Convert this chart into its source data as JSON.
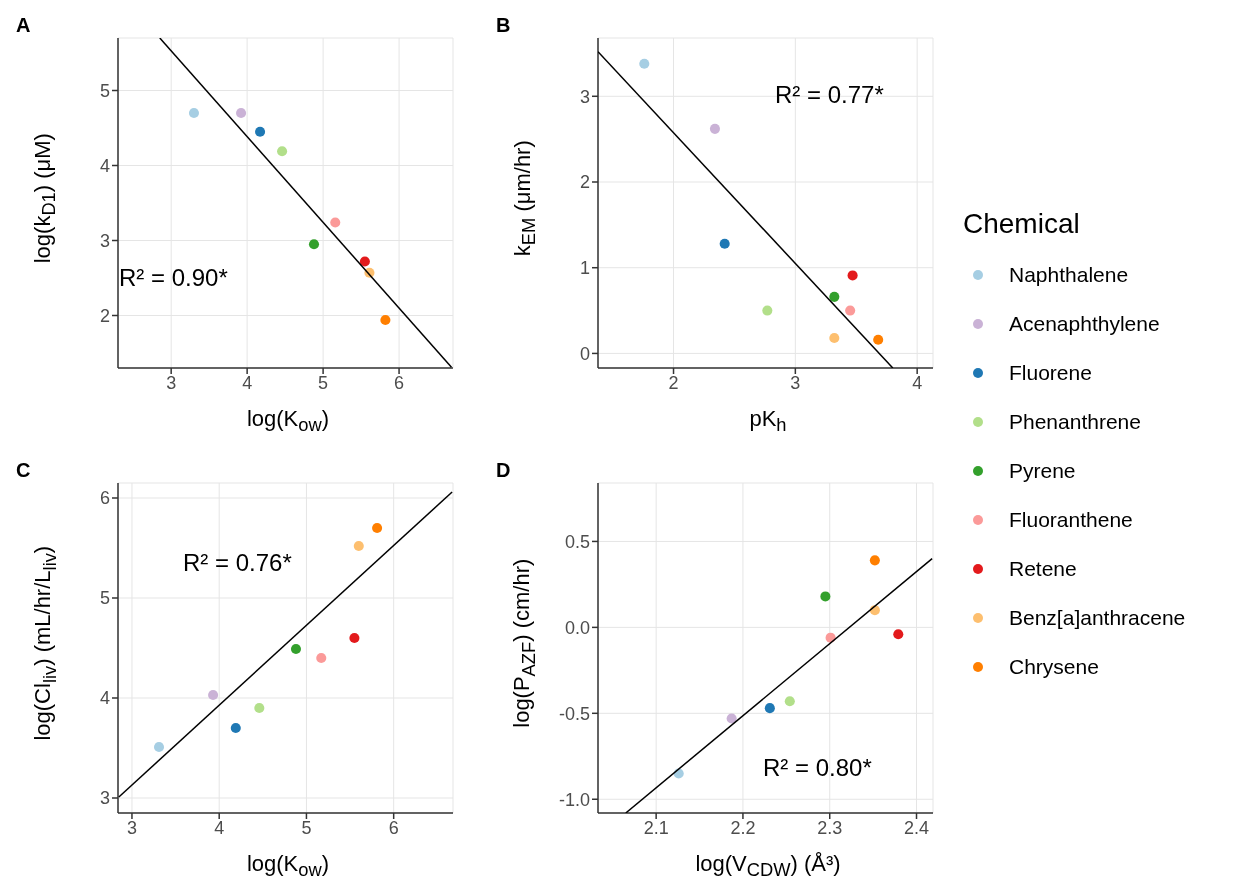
{
  "chart_data": [
    {
      "type": "scatter",
      "title": "A",
      "xlabel": "log(K$_{ow}$)",
      "ylabel": "log(k$_{D1}$) (μM)",
      "xlim": [
        2.3,
        6.71
      ],
      "ylim": [
        1.3,
        5.7
      ],
      "xticks": [
        3,
        4,
        5,
        6
      ],
      "yticks": [
        2,
        3,
        4,
        5
      ],
      "grid": true,
      "marker": "circle",
      "legend": "right",
      "legend_title": "Chemical",
      "annotations": [
        "R² = 0.90*"
      ],
      "series": [
        {
          "name": "Naphthalene",
          "color": "#a6cee3",
          "x": [
            3.3
          ],
          "values": [
            4.7
          ]
        },
        {
          "name": "Acenaphthylene",
          "color": "#cab2d6",
          "x": [
            3.92
          ],
          "values": [
            4.7
          ]
        },
        {
          "name": "Fluorene",
          "color": "#1f78b4",
          "x": [
            4.17
          ],
          "values": [
            4.45
          ]
        },
        {
          "name": "Phenanthrene",
          "color": "#b2df8a",
          "x": [
            4.46
          ],
          "values": [
            4.19
          ]
        },
        {
          "name": "Pyrene",
          "color": "#33a02c",
          "x": [
            4.88
          ],
          "values": [
            2.95
          ]
        },
        {
          "name": "Fluoranthene",
          "color": "#fb9a99",
          "x": [
            5.16
          ],
          "values": [
            3.24
          ]
        },
        {
          "name": "Retene",
          "color": "#e31a1c",
          "x": [
            5.55
          ],
          "values": [
            2.72
          ]
        },
        {
          "name": "Benz[a]anthracene",
          "color": "#fdbf6f",
          "x": [
            5.61
          ],
          "values": [
            2.57
          ]
        },
        {
          "name": "Chrysene",
          "color": "#ff7f00",
          "x": [
            5.82
          ],
          "values": [
            1.94
          ]
        },
        {
          "type": "line",
          "color": "#000000",
          "marker": "none",
          "x": [
            2.85,
            6.69
          ],
          "values": [
            5.7,
            1.31
          ]
        }
      ]
    },
    {
      "type": "scatter",
      "title": "B",
      "xlabel": "pK$_{h}$",
      "ylabel": "k$_{EM}$ (μm/hr)",
      "xlim": [
        1.38,
        4.13
      ],
      "ylim": [
        -0.17,
        3.68
      ],
      "xticks": [
        2,
        3,
        4
      ],
      "yticks": [
        0,
        1,
        2,
        3
      ],
      "grid": true,
      "marker": "circle",
      "annotations": [
        "R² = 0.77*"
      ],
      "series": [
        {
          "color": "#a6cee3",
          "x": [
            1.76
          ],
          "values": [
            3.38
          ]
        },
        {
          "color": "#cab2d6",
          "x": [
            2.34
          ],
          "values": [
            2.62
          ]
        },
        {
          "color": "#1f78b4",
          "x": [
            2.42
          ],
          "values": [
            1.28
          ]
        },
        {
          "color": "#b2df8a",
          "x": [
            2.77
          ],
          "values": [
            0.5
          ]
        },
        {
          "color": "#33a02c",
          "x": [
            3.32
          ],
          "values": [
            0.66
          ]
        },
        {
          "color": "#fb9a99",
          "x": [
            3.45
          ],
          "values": [
            0.5
          ]
        },
        {
          "color": "#e31a1c",
          "x": [
            3.47
          ],
          "values": [
            0.91
          ]
        },
        {
          "color": "#fdbf6f",
          "x": [
            3.32
          ],
          "values": [
            0.18
          ]
        },
        {
          "color": "#ff7f00",
          "x": [
            3.68
          ],
          "values": [
            0.16
          ]
        },
        {
          "type": "line",
          "color": "#000000",
          "marker": "none",
          "x": [
            1.38,
            3.8
          ],
          "values": [
            3.52,
            -0.17
          ]
        }
      ]
    },
    {
      "type": "scatter",
      "title": "C",
      "xlabel": "log(K$_{ow}$)",
      "ylabel": "log(Cl$_{liv}$) (mL/hr/L$_{liv}$)",
      "xlim": [
        2.84,
        6.68
      ],
      "ylim": [
        2.85,
        6.15
      ],
      "xticks": [
        3,
        4,
        5,
        6
      ],
      "yticks": [
        3,
        4,
        5,
        6
      ],
      "grid": true,
      "marker": "circle",
      "annotations": [
        "R² = 0.76*"
      ],
      "series": [
        {
          "color": "#a6cee3",
          "x": [
            3.31
          ],
          "values": [
            3.51
          ]
        },
        {
          "color": "#cab2d6",
          "x": [
            3.93
          ],
          "values": [
            4.03
          ]
        },
        {
          "color": "#1f78b4",
          "x": [
            4.19
          ],
          "values": [
            3.7
          ]
        },
        {
          "color": "#b2df8a",
          "x": [
            4.46
          ],
          "values": [
            3.9
          ]
        },
        {
          "color": "#33a02c",
          "x": [
            4.88
          ],
          "values": [
            4.49
          ]
        },
        {
          "color": "#fb9a99",
          "x": [
            5.17
          ],
          "values": [
            4.4
          ]
        },
        {
          "color": "#e31a1c",
          "x": [
            5.55
          ],
          "values": [
            4.6
          ]
        },
        {
          "color": "#fdbf6f",
          "x": [
            5.6
          ],
          "values": [
            5.52
          ]
        },
        {
          "color": "#ff7f00",
          "x": [
            5.81
          ],
          "values": [
            5.7
          ]
        },
        {
          "type": "line",
          "color": "#000000",
          "marker": "none",
          "x": [
            2.85,
            6.67
          ],
          "values": [
            3.01,
            6.06
          ]
        }
      ]
    },
    {
      "type": "scatter",
      "title": "D",
      "xlabel": "log(V$_{CDW}$) (Å³)",
      "ylabel": "log(P$_{AZF}$) (cm/hr)",
      "xlim": [
        2.033,
        2.419
      ],
      "ylim": [
        -1.08,
        0.84
      ],
      "xticks": [
        2.1,
        2.2,
        2.3,
        2.4
      ],
      "yticks": [
        {
          "value": -1,
          "label": "-1.0"
        },
        -0.5,
        {
          "value": 0,
          "label": "0.0"
        },
        0.5
      ],
      "grid": true,
      "marker": "circle",
      "annotations": [
        "R² = 0.80*"
      ],
      "series": [
        {
          "color": "#a6cee3",
          "x": [
            2.126
          ],
          "values": [
            -0.85
          ]
        },
        {
          "color": "#cab2d6",
          "x": [
            2.187
          ],
          "values": [
            -0.53
          ]
        },
        {
          "color": "#1f78b4",
          "x": [
            2.231
          ],
          "values": [
            -0.47
          ]
        },
        {
          "color": "#b2df8a",
          "x": [
            2.254
          ],
          "values": [
            -0.43
          ]
        },
        {
          "color": "#33a02c",
          "x": [
            2.295
          ],
          "values": [
            0.18
          ]
        },
        {
          "color": "#fb9a99",
          "x": [
            2.301
          ],
          "values": [
            -0.06
          ]
        },
        {
          "color": "#e31a1c",
          "x": [
            2.379
          ],
          "values": [
            -0.04
          ]
        },
        {
          "color": "#fdbf6f",
          "x": [
            2.352
          ],
          "values": [
            0.1
          ]
        },
        {
          "color": "#ff7f00",
          "x": [
            2.352
          ],
          "values": [
            0.39
          ]
        },
        {
          "type": "line",
          "color": "#000000",
          "marker": "none",
          "x": [
            2.065,
            2.418
          ],
          "values": [
            -1.08,
            0.4
          ]
        }
      ]
    }
  ]
}
